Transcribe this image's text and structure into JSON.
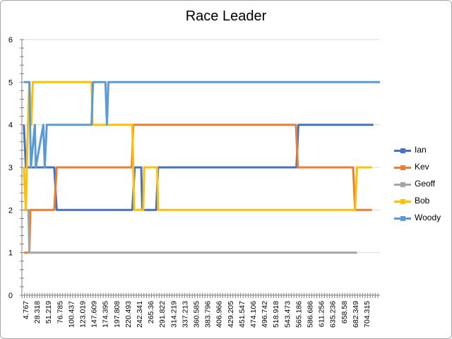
{
  "chart_data": {
    "type": "line",
    "title": "Race Leader",
    "ylim": [
      0,
      6
    ],
    "yticks": [
      "0",
      "1",
      "2",
      "3",
      "4",
      "5",
      "6"
    ],
    "xlim": [
      0,
      720
    ],
    "x_tick_labels": [
      "4.767",
      "28.318",
      "51.219",
      "76.785",
      "100.437",
      "123.019",
      "147.609",
      "174.395",
      "197.808",
      "220.493",
      "242.341",
      "265.36",
      "291.822",
      "314.219",
      "337.213",
      "360.585",
      "383.796",
      "406.966",
      "429.205",
      "451.547",
      "474.106",
      "496.742",
      "518.918",
      "543.473",
      "565.186",
      "586.686",
      "611.256",
      "635.236",
      "658.58",
      "682.349",
      "704.315"
    ],
    "grid": "horizontal",
    "legend_position": "right",
    "series": [
      {
        "name": "Ian",
        "color": "#4472C4",
        "points": [
          [
            4,
            4
          ],
          [
            8,
            3
          ],
          [
            12,
            3
          ],
          [
            18,
            3
          ],
          [
            48,
            3
          ],
          [
            52,
            3
          ],
          [
            65,
            3
          ],
          [
            70,
            2
          ],
          [
            222,
            2
          ],
          [
            227,
            3
          ],
          [
            240,
            3
          ],
          [
            242,
            2
          ],
          [
            270,
            2
          ],
          [
            274,
            3
          ],
          [
            552,
            3
          ],
          [
            556,
            4
          ],
          [
            707,
            4
          ]
        ]
      },
      {
        "name": "Kev",
        "color": "#ED7D31",
        "points": [
          [
            4,
            1
          ],
          [
            15,
            1
          ],
          [
            17,
            2
          ],
          [
            65,
            2
          ],
          [
            70,
            3
          ],
          [
            221,
            3
          ],
          [
            224,
            4
          ],
          [
            551,
            4
          ],
          [
            555,
            3
          ],
          [
            666,
            3
          ],
          [
            670,
            2
          ],
          [
            704,
            2
          ]
        ]
      },
      {
        "name": "Geoff",
        "color": "#A5A5A5",
        "points": [
          [
            4,
            2
          ],
          [
            13,
            2
          ],
          [
            15,
            1
          ],
          [
            674,
            1
          ]
        ]
      },
      {
        "name": "Bob",
        "color": "#FFC000",
        "points": [
          [
            4,
            3
          ],
          [
            8,
            2
          ],
          [
            12,
            4
          ],
          [
            15,
            5
          ],
          [
            19,
            4
          ],
          [
            22,
            5
          ],
          [
            140,
            5
          ],
          [
            142,
            4
          ],
          [
            170,
            4
          ],
          [
            175,
            4
          ],
          [
            222,
            4
          ],
          [
            226,
            2
          ],
          [
            244,
            2
          ],
          [
            246,
            3
          ],
          [
            272,
            3
          ],
          [
            274,
            2
          ],
          [
            670,
            2
          ],
          [
            674,
            3
          ],
          [
            704,
            3
          ]
        ]
      },
      {
        "name": "Woody",
        "color": "#5B9BD5",
        "points": [
          [
            4,
            5
          ],
          [
            15,
            5
          ],
          [
            18,
            3
          ],
          [
            26,
            4
          ],
          [
            28,
            3
          ],
          [
            43,
            4
          ],
          [
            46,
            3
          ],
          [
            50,
            4
          ],
          [
            140,
            4
          ],
          [
            143,
            5
          ],
          [
            168,
            5
          ],
          [
            171,
            4
          ],
          [
            174,
            5
          ],
          [
            720,
            5
          ]
        ]
      }
    ]
  }
}
